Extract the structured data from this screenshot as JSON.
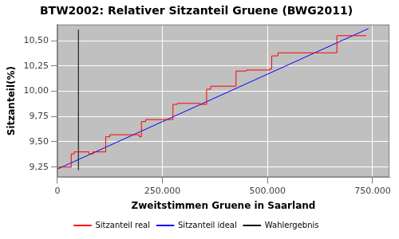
{
  "chart_data": {
    "type": "line",
    "title": "BTW2002: Relativer Sitzanteil Gruene (BWG2011)",
    "x_label": "Zweitstimmen Gruene in Saarland",
    "y_label": "Sitzanteil(%)",
    "xlim": [
      0,
      790000
    ],
    "xticks": [
      0,
      {
        "value": 250000,
        "label": "250.000"
      },
      {
        "value": 500000,
        "label": "500.000"
      },
      {
        "value": 750000,
        "label": "750.000"
      }
    ],
    "ylim": [
      9.15,
      10.66
    ],
    "yticks": [
      {
        "value": 9.25,
        "label": "9,25"
      },
      {
        "value": 9.5,
        "label": "9,50"
      },
      {
        "value": 9.75,
        "label": "9,75"
      },
      {
        "value": 10,
        "label": "10,00"
      },
      {
        "value": 10.25,
        "label": "10,25"
      },
      {
        "value": 10.5,
        "label": "10,50"
      }
    ],
    "grid": true,
    "legend": "bottom",
    "series": [
      {
        "name": "Sitzanteil real",
        "color": "#ff0000",
        "line_style": "step",
        "x": [
          0,
          33000,
          40000,
          75000,
          85000,
          115000,
          125000,
          195000,
          200000,
          210000,
          275000,
          285000,
          340000,
          355000,
          365000,
          425000,
          450000,
          505000,
          510000,
          525000,
          665000,
          735000
        ],
        "values": [
          9.25,
          9.38,
          9.4,
          9.38,
          9.4,
          9.55,
          9.57,
          9.55,
          9.7,
          9.72,
          9.87,
          9.88,
          9.87,
          10.02,
          10.05,
          10.2,
          10.21,
          10.22,
          10.35,
          10.38,
          10.55,
          10.55
        ]
      },
      {
        "name": "Sitzanteil ideal",
        "color": "#0000ff",
        "line_style": "solid",
        "x": [
          0,
          740000
        ],
        "values": [
          9.23,
          10.62
        ]
      },
      {
        "name": "Wahlergebnis",
        "color": "#000000",
        "line_style": "solid",
        "x": [
          50000,
          50000
        ],
        "values": [
          9.22,
          10.61
        ]
      }
    ]
  }
}
